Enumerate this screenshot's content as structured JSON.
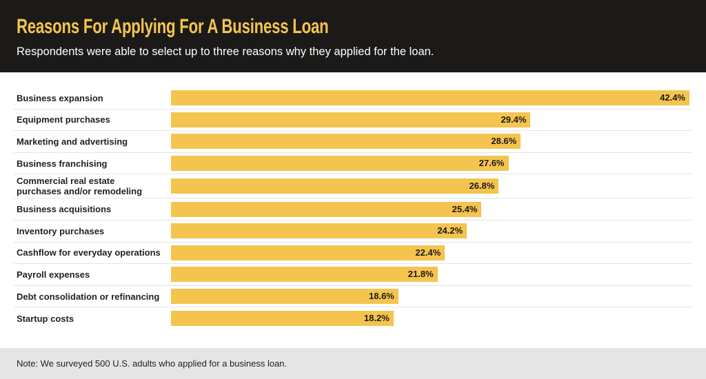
{
  "chart_data": {
    "type": "bar",
    "orientation": "horizontal",
    "title": "Reasons For Applying For A Business Loan",
    "subtitle": "Respondents were able to select up to three reasons why they applied for the loan.",
    "note": "Note: We surveyed 500 U.S. adults who applied for a business loan.",
    "categories": [
      "Business expansion",
      "Equipment purchases",
      "Marketing and advertising",
      "Business franchising",
      "Commercial real estate purchases and/or remodeling",
      "Business acquisitions",
      "Inventory purchases",
      "Cashflow for everyday operations",
      "Payroll expenses",
      "Debt consolidation or refinancing",
      "Startup costs"
    ],
    "values": [
      42.4,
      29.4,
      28.6,
      27.6,
      26.8,
      25.4,
      24.2,
      22.4,
      21.8,
      18.6,
      18.2
    ],
    "value_labels": [
      "42.4%",
      "29.4%",
      "28.6%",
      "27.6%",
      "26.8%",
      "25.4%",
      "24.2%",
      "22.4%",
      "21.8%",
      "18.6%",
      "18.2%"
    ],
    "color": "#f4c44e"
  }
}
